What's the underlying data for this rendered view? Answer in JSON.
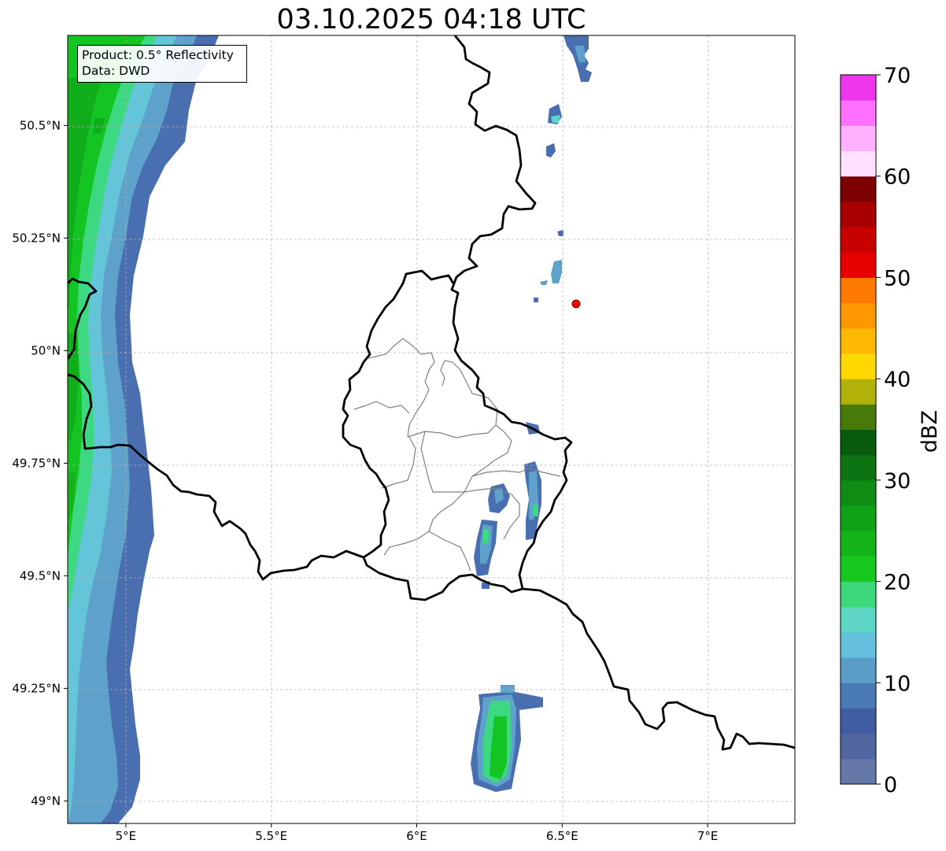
{
  "title": "03.10.2025 04:18 UTC",
  "info": {
    "product": "Product: 0.5° Reflectivity",
    "data": "Data: DWD"
  },
  "chart_data": {
    "type": "heatmap",
    "title": "03.10.2025 04:18 UTC",
    "xlim": [
      4.8,
      7.3
    ],
    "ylim": [
      48.95,
      50.7
    ],
    "x_ticks": [
      {
        "value": 5.0,
        "label": "5°E"
      },
      {
        "value": 5.5,
        "label": "5.5°E"
      },
      {
        "value": 6.0,
        "label": "6°E"
      },
      {
        "value": 6.5,
        "label": "6.5°E"
      },
      {
        "value": 7.0,
        "label": "7°E"
      }
    ],
    "y_ticks": [
      {
        "value": 49.0,
        "label": "49°N"
      },
      {
        "value": 49.25,
        "label": "49.25°N"
      },
      {
        "value": 49.5,
        "label": "49.5°N"
      },
      {
        "value": 49.75,
        "label": "49.75°N"
      },
      {
        "value": 50.0,
        "label": "50°N"
      },
      {
        "value": 50.25,
        "label": "50.25°N"
      },
      {
        "value": 50.5,
        "label": "50.5°N"
      }
    ],
    "grid": true,
    "colorbar": {
      "label": "dBZ",
      "min": 0,
      "max": 70,
      "step": 2.5,
      "ticks": [
        {
          "value": 0,
          "label": "0"
        },
        {
          "value": 10,
          "label": "10"
        },
        {
          "value": 20,
          "label": "20"
        },
        {
          "value": 30,
          "label": "30"
        },
        {
          "value": 40,
          "label": "40"
        },
        {
          "value": 50,
          "label": "50"
        },
        {
          "value": 60,
          "label": "60"
        },
        {
          "value": 70,
          "label": "70"
        }
      ],
      "colors": [
        "#6478a8",
        "#5066a0",
        "#405ca2",
        "#4a7ab4",
        "#5a9ec8",
        "#64c0dc",
        "#5ed6c6",
        "#3cd87a",
        "#14c81e",
        "#12b41a",
        "#10a216",
        "#0e8c14",
        "#0c7410",
        "#085a0c",
        "#487a0a",
        "#b0b20a",
        "#ffd800",
        "#ffb800",
        "#ff9800",
        "#ff7800",
        "#e80000",
        "#c80000",
        "#a80000",
        "#7c0000",
        "#ffe0ff",
        "#ffb0ff",
        "#ff70ff",
        "#ee36ee"
      ]
    },
    "marker": {
      "lon": 6.55,
      "lat": 50.11,
      "color": "#ff0000"
    }
  }
}
